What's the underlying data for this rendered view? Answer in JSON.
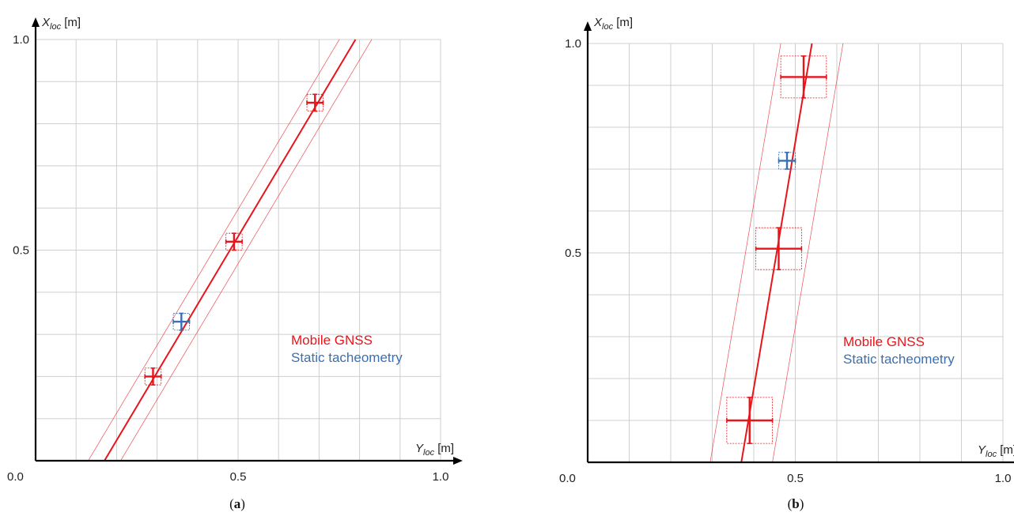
{
  "chart_data": [
    {
      "type": "scatter",
      "panel_label": "(a)",
      "xlabel": {
        "main": "Y",
        "sub": "loc",
        "unit": "[m]"
      },
      "ylabel": {
        "main": "X",
        "sub": "loc",
        "unit": "[m]"
      },
      "xlim": [
        0,
        1
      ],
      "ylim": [
        0,
        1
      ],
      "origin_label": "0.0",
      "x_ticks": [
        "0.5",
        "1.0"
      ],
      "y_ticks": [
        "0.5",
        "1.0"
      ],
      "grid": true,
      "legend": [
        "Mobile GNSS",
        "Static tacheometry"
      ],
      "fit_line": {
        "from": [
          0.17,
          0.0
        ],
        "to": [
          0.79,
          1.0
        ],
        "band_offset": 0.04
      },
      "series": [
        {
          "name": "Mobile GNSS",
          "color": "#e8141b",
          "points": [
            {
              "y": 0.29,
              "x": 0.2,
              "ey": 0.02,
              "ex": 0.02
            },
            {
              "y": 0.49,
              "x": 0.52,
              "ey": 0.02,
              "ex": 0.02
            },
            {
              "y": 0.69,
              "x": 0.85,
              "ey": 0.02,
              "ex": 0.02
            }
          ]
        },
        {
          "name": "Static tacheometry",
          "color": "#3a6fb0",
          "points": [
            {
              "y": 0.36,
              "x": 0.33,
              "ey": 0.02,
              "ex": 0.02
            }
          ]
        }
      ]
    },
    {
      "type": "scatter",
      "panel_label": "(b)",
      "xlabel": {
        "main": "Y",
        "sub": "loc",
        "unit": "[m]"
      },
      "ylabel": {
        "main": "X",
        "sub": "loc",
        "unit": "[m]"
      },
      "xlim": [
        0,
        1
      ],
      "ylim": [
        0,
        1
      ],
      "origin_label": "0.0",
      "x_ticks": [
        "0.5",
        "1.0"
      ],
      "y_ticks": [
        "0.5",
        "1.0"
      ],
      "grid": true,
      "legend": [
        "Mobile GNSS",
        "Static tacheometry"
      ],
      "fit_line": {
        "from": [
          0.37,
          0.0
        ],
        "to": [
          0.54,
          1.0
        ],
        "band_offset": 0.075
      },
      "series": [
        {
          "name": "Mobile GNSS",
          "color": "#e8141b",
          "points": [
            {
              "y": 0.39,
              "x": 0.1,
              "ey": 0.055,
              "ex": 0.055
            },
            {
              "y": 0.46,
              "x": 0.51,
              "ey": 0.055,
              "ex": 0.05
            },
            {
              "y": 0.52,
              "x": 0.92,
              "ey": 0.055,
              "ex": 0.05
            }
          ]
        },
        {
          "name": "Static tacheometry",
          "color": "#3a6fb0",
          "points": [
            {
              "y": 0.48,
              "x": 0.72,
              "ey": 0.02,
              "ex": 0.02
            }
          ]
        }
      ]
    }
  ]
}
